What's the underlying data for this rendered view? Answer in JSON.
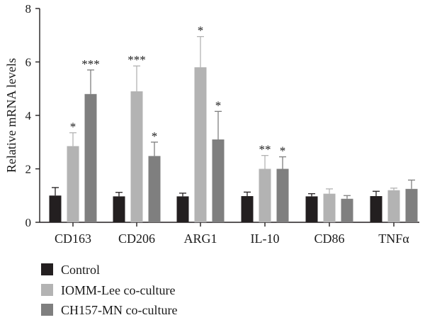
{
  "chart_data": {
    "type": "bar",
    "title": "",
    "xlabel": "",
    "ylabel": "Relative mRNA levels",
    "ylim": [
      0,
      8
    ],
    "yticks": [
      0,
      2,
      4,
      6,
      8
    ],
    "grid": false,
    "legend_position": "bottom-left",
    "categories": [
      "CD163",
      "CD206",
      "ARG1",
      "IL-10",
      "CD86",
      "TNFα"
    ],
    "series": [
      {
        "name": "Control",
        "color": "#231f20",
        "values": [
          1.0,
          0.97,
          0.97,
          0.98,
          0.97,
          0.98
        ],
        "errors": [
          0.3,
          0.15,
          0.12,
          0.15,
          0.1,
          0.18
        ],
        "significance": [
          "",
          "",
          "",
          "",
          "",
          ""
        ]
      },
      {
        "name": "IOMM-Lee co-culture",
        "color": "#b3b3b3",
        "values": [
          2.85,
          4.9,
          5.8,
          2.0,
          1.07,
          1.2
        ],
        "errors": [
          0.5,
          0.95,
          1.15,
          0.5,
          0.18,
          0.08
        ],
        "significance": [
          "*",
          "***",
          "*",
          "**",
          "",
          ""
        ]
      },
      {
        "name": "CH157-MN co-culture",
        "color": "#7f7f7f",
        "values": [
          4.8,
          2.48,
          3.1,
          2.0,
          0.88,
          1.25
        ],
        "errors": [
          0.9,
          0.52,
          1.05,
          0.45,
          0.12,
          0.33
        ],
        "significance": [
          "***",
          "*",
          "*",
          "*",
          "",
          ""
        ]
      }
    ]
  }
}
